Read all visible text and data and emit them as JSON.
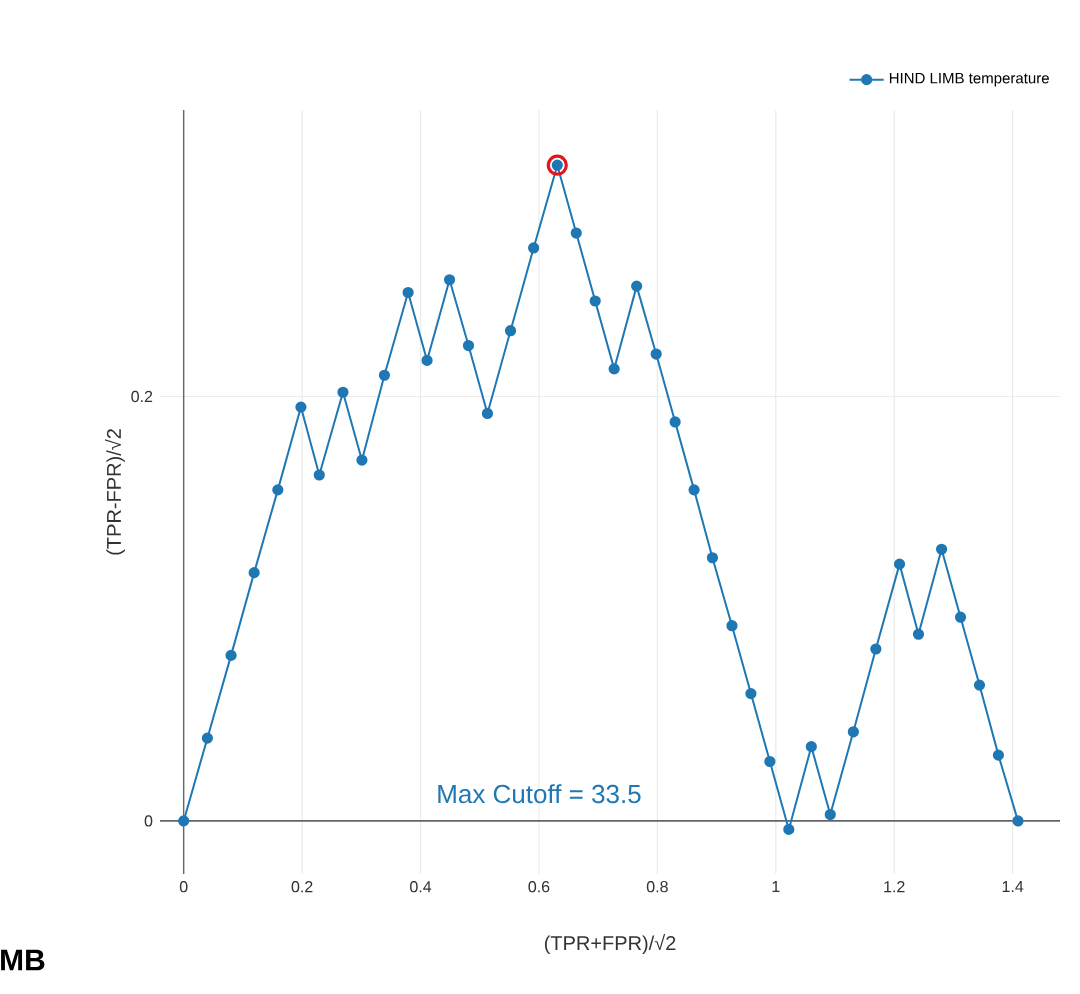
{
  "chart_data": {
    "type": "line",
    "xlabel": "(TPR+FPR)/√2",
    "ylabel": "(TPR-FPR)/√2",
    "annotations": [
      "Max Cutoff = 33.5",
      "MB"
    ],
    "xlim": [
      -0.04,
      1.48
    ],
    "ylim": [
      -0.025,
      0.335
    ],
    "xticks": [
      0,
      0.2,
      0.4,
      0.6,
      0.8,
      1,
      1.2,
      1.4
    ],
    "yticks": [
      0,
      0.2
    ],
    "grid": true,
    "legend": "top right",
    "marker": "circle",
    "line_style": "solid",
    "series": [
      {
        "name": "HIND LIMB temperature",
        "color": "#1f77b4",
        "x": [
          0,
          0.04,
          0.08,
          0.119,
          0.159,
          0.198,
          0.229,
          0.269,
          0.301,
          0.339,
          0.379,
          0.411,
          0.449,
          0.481,
          0.513,
          0.552,
          0.591,
          0.631,
          0.663,
          0.695,
          0.727,
          0.765,
          0.798,
          0.83,
          0.862,
          0.893,
          0.926,
          0.958,
          0.99,
          1.022,
          1.06,
          1.092,
          1.131,
          1.169,
          1.209,
          1.241,
          1.28,
          1.312,
          1.344,
          1.376,
          1.409
        ],
        "values": [
          0,
          0.039,
          0.078,
          0.117,
          0.156,
          0.195,
          0.163,
          0.202,
          0.17,
          0.21,
          0.249,
          0.217,
          0.255,
          0.224,
          0.192,
          0.231,
          0.27,
          0.309,
          0.277,
          0.245,
          0.213,
          0.252,
          0.22,
          0.188,
          0.156,
          0.124,
          0.092,
          0.06,
          0.028,
          -0.004,
          0.035,
          0.003,
          0.042,
          0.081,
          0.121,
          0.088,
          0.128,
          0.096,
          0.064,
          0.031,
          0
        ]
      },
      {
        "type": "scatter",
        "color": "#e8141c",
        "x": [
          0.631
        ],
        "values": [
          0.309
        ]
      }
    ]
  }
}
